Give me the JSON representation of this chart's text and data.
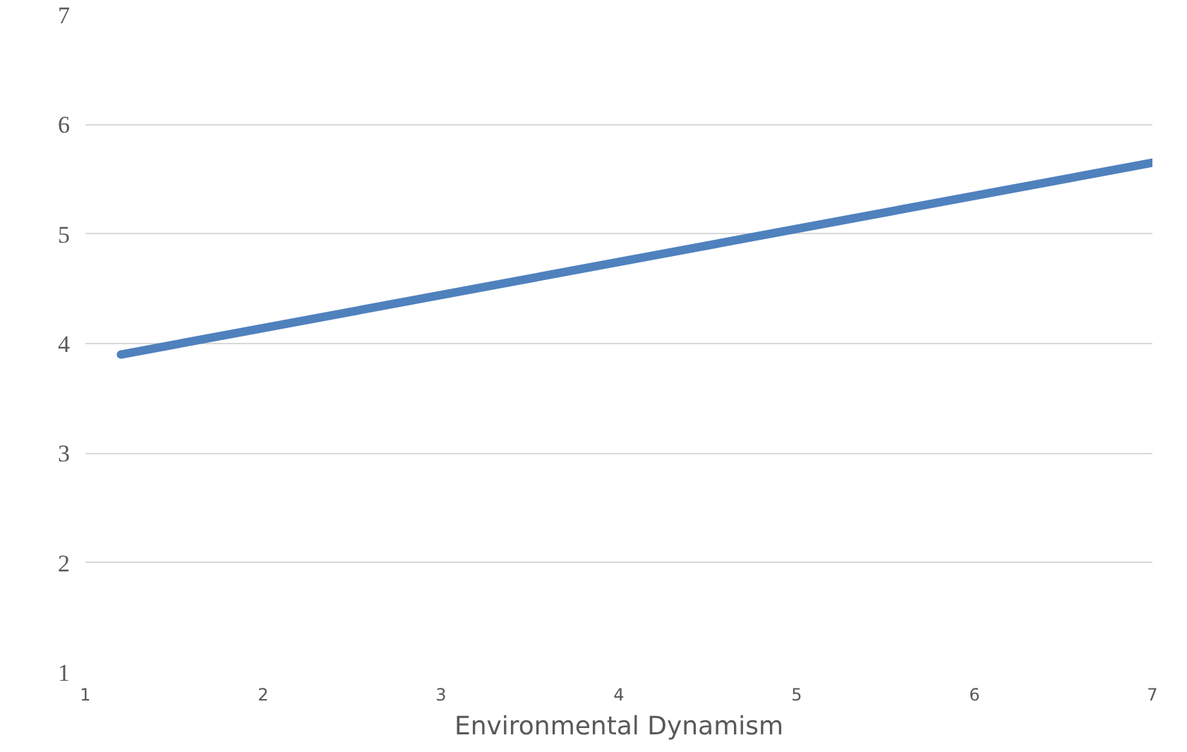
{
  "chart_data": {
    "type": "line",
    "xlabel": "Environmental Dynamism",
    "x": [
      1.2,
      7
    ],
    "series": [
      {
        "color": "#4f81bd",
        "values": [
          3.9,
          5.65
        ]
      }
    ],
    "xlim": [
      1,
      7
    ],
    "xticks": [
      1,
      2,
      3,
      4,
      5,
      6,
      7
    ],
    "ylim": [
      1,
      7
    ],
    "yticks": [
      1,
      2,
      3,
      4,
      5,
      6,
      7
    ],
    "grid": "y"
  }
}
